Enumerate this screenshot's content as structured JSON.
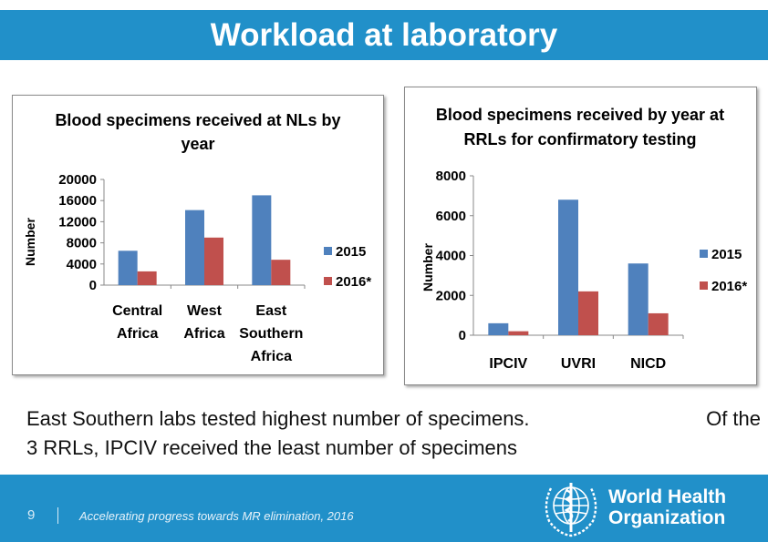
{
  "slide": {
    "title": "Workload at laboratory",
    "caption_line1_left": "East Southern labs tested highest number of specimens.",
    "caption_line1_right": "Of the",
    "caption_line2": "3 RRLs, IPCIV received the least number of specimens"
  },
  "footer": {
    "page_number": "9",
    "text": "Accelerating progress towards MR elimination, 2016",
    "org_line1": "World Health",
    "org_line2": "Organization"
  },
  "colors": {
    "bar_2015": "#4f81bd",
    "bar_2016": "#c0504d",
    "title_bar": "#2190c9"
  },
  "chart_data": [
    {
      "type": "bar",
      "title": [
        "Blood specimens received at NLs by",
        "year"
      ],
      "ylabel": "Number",
      "xlabel": "",
      "categories": [
        [
          "Central",
          "Africa"
        ],
        [
          "West",
          "Africa"
        ],
        [
          "East",
          "Southern",
          "Africa"
        ]
      ],
      "series": [
        {
          "name": "2015",
          "values": [
            6500,
            14200,
            17000
          ]
        },
        {
          "name": "2016*",
          "values": [
            2600,
            9000,
            4800
          ]
        }
      ],
      "ylim": [
        0,
        20000
      ],
      "yticks": [
        "0",
        "4000",
        "8000",
        "12000",
        "16000",
        "20000"
      ],
      "grid": false,
      "legend": "right"
    },
    {
      "type": "bar",
      "title": [
        "Blood specimens received by year at",
        "RRLs for confirmatory testing"
      ],
      "ylabel": "Number",
      "xlabel": "",
      "categories": [
        [
          "IPCIV"
        ],
        [
          "UVRI"
        ],
        [
          "NICD"
        ]
      ],
      "series": [
        {
          "name": "2015",
          "values": [
            600,
            6800,
            3600
          ]
        },
        {
          "name": "2016*",
          "values": [
            200,
            2200,
            1100
          ]
        }
      ],
      "ylim": [
        0,
        8000
      ],
      "yticks": [
        "0",
        "2000",
        "4000",
        "6000",
        "8000"
      ],
      "grid": false,
      "legend": "right"
    }
  ]
}
